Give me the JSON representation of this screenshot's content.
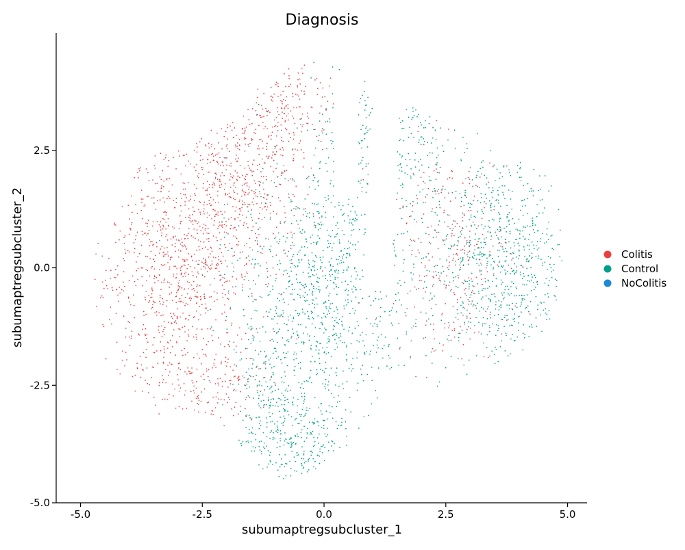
{
  "chart_data": {
    "type": "scatter",
    "title": "Diagnosis",
    "xlabel": "subumaptregsubcluster_1",
    "ylabel": "subumaptregsubcluster_2",
    "xlim": [
      -5.5,
      5.4
    ],
    "ylim": [
      -5.0,
      5.0
    ],
    "xticks": [
      "-5.0",
      "-2.5",
      "0.0",
      "2.5",
      "5.0"
    ],
    "xtick_values": [
      -5.0,
      -2.5,
      0.0,
      2.5,
      5.0
    ],
    "yticks": [
      "-5.0",
      "-2.5",
      "0.0",
      "2.5"
    ],
    "ytick_values": [
      -5.0,
      -2.5,
      0.0,
      2.5
    ],
    "grid": false,
    "legend_position": "right",
    "series": [
      {
        "name": "Colitis",
        "color": "#E8403F",
        "clusters": [
          {
            "cx": -3.0,
            "cy": 0.0,
            "sx": 0.9,
            "sy": 1.3,
            "n": 900
          },
          {
            "cx": -1.7,
            "cy": 1.8,
            "sx": 0.7,
            "sy": 0.9,
            "n": 450
          },
          {
            "cx": -0.7,
            "cy": 3.6,
            "sx": 0.5,
            "sy": 0.6,
            "n": 150
          },
          {
            "cx": 2.6,
            "cy": 0.3,
            "sx": 0.6,
            "sy": 1.1,
            "n": 300
          },
          {
            "cx": -2.5,
            "cy": -2.6,
            "sx": 0.7,
            "sy": 0.5,
            "n": 150
          }
        ]
      },
      {
        "name": "Control",
        "color": "#00A087",
        "clusters": [
          {
            "cx": 0.0,
            "cy": -0.4,
            "sx": 0.85,
            "sy": 1.3,
            "n": 900
          },
          {
            "cx": 3.6,
            "cy": 0.1,
            "sx": 0.75,
            "sy": 1.2,
            "n": 750
          },
          {
            "cx": -0.5,
            "cy": -3.6,
            "sx": 0.55,
            "sy": 0.6,
            "n": 250
          },
          {
            "cx": 1.2,
            "cy": 2.6,
            "sx": 0.7,
            "sy": 0.8,
            "n": 200
          },
          {
            "cx": -1.2,
            "cy": -2.7,
            "sx": 0.35,
            "sy": 0.7,
            "n": 150
          }
        ]
      },
      {
        "name": "NoColitis",
        "color": "#1E88D9",
        "clusters": [
          {
            "cx": -1.2,
            "cy": 0.5,
            "sx": 1.2,
            "sy": 1.5,
            "n": 25
          },
          {
            "cx": 2.5,
            "cy": 0.0,
            "sx": 1.0,
            "sy": 1.5,
            "n": 15
          }
        ]
      }
    ]
  }
}
